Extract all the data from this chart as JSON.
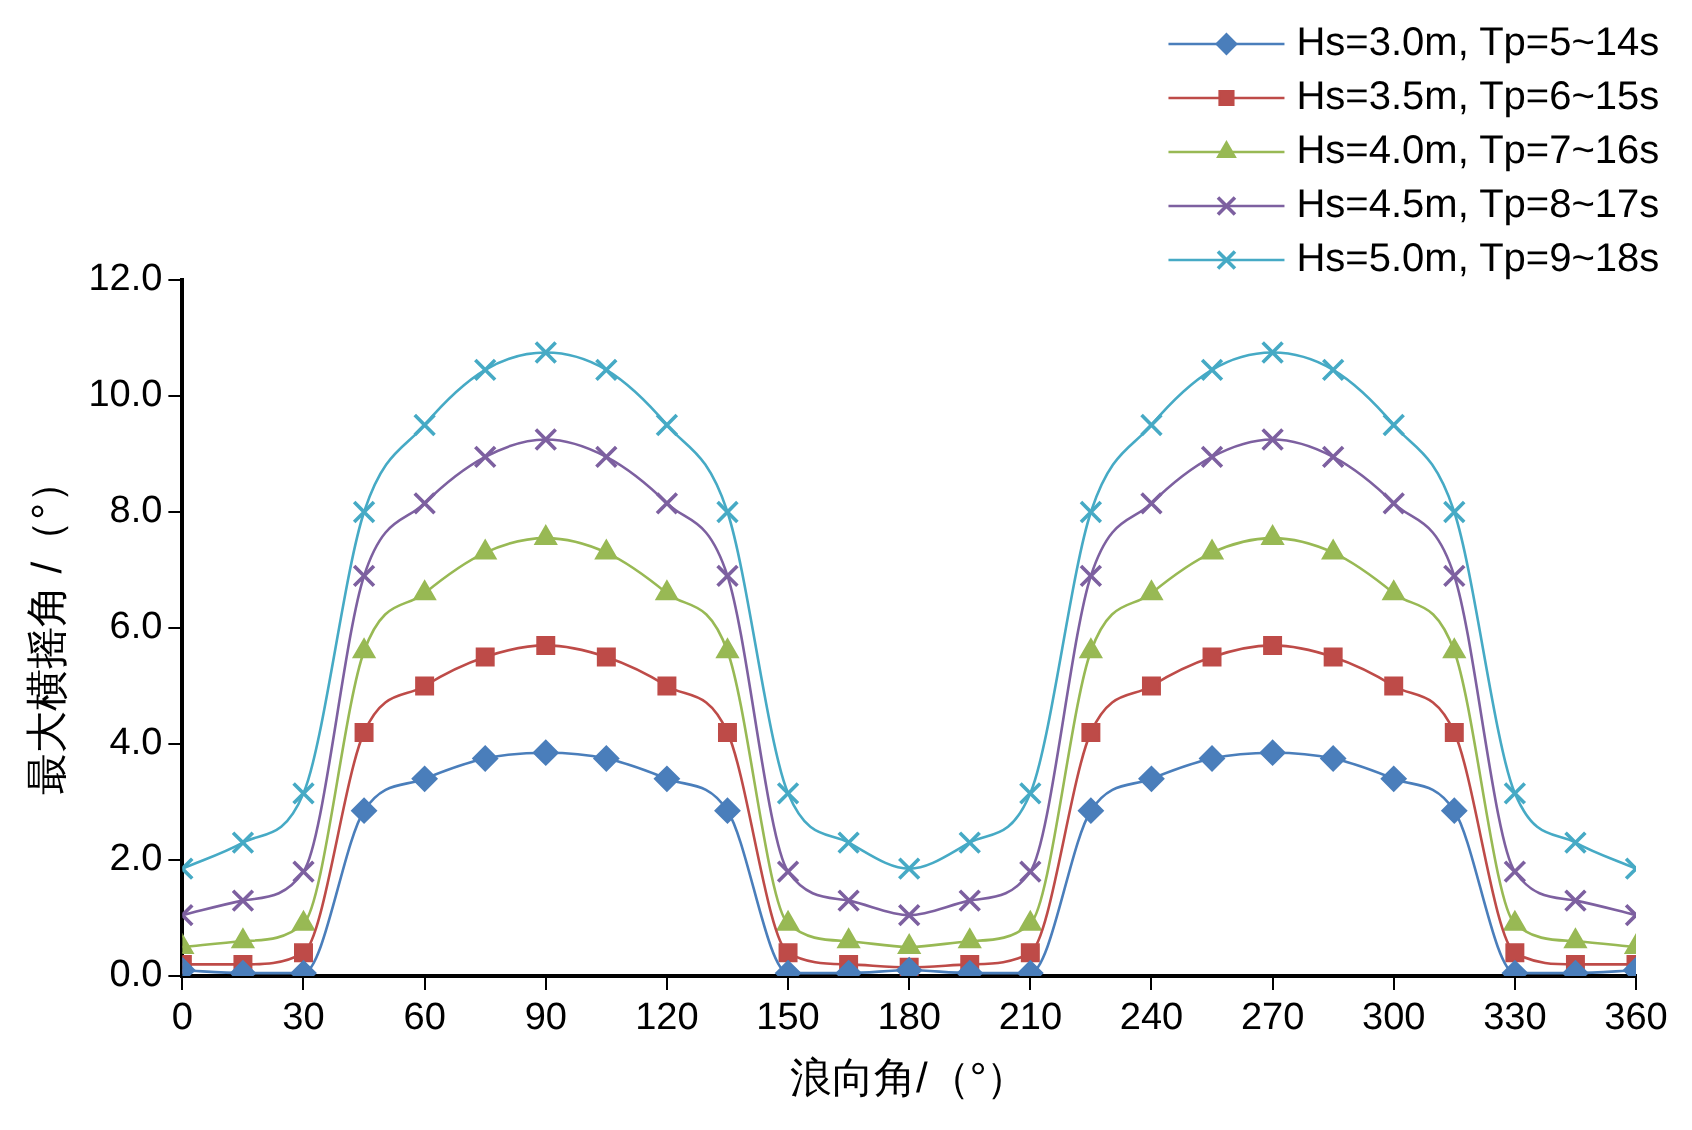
{
  "chart_data": {
    "type": "line",
    "xlabel": "浪向角/（°）",
    "ylabel": "最大横摇角 /（°）",
    "x": [
      0,
      15,
      30,
      45,
      60,
      75,
      90,
      105,
      120,
      135,
      150,
      165,
      180,
      195,
      210,
      225,
      240,
      255,
      270,
      285,
      300,
      315,
      330,
      345,
      360
    ],
    "xlim": [
      0,
      360
    ],
    "xticks": [
      0,
      30,
      60,
      90,
      120,
      150,
      180,
      210,
      240,
      270,
      300,
      330,
      360
    ],
    "ylim": [
      0,
      12
    ],
    "yticks": [
      {
        "value": 0,
        "label": "0.0"
      },
      {
        "value": 2,
        "label": "2.0"
      },
      {
        "value": 4,
        "label": "4.0"
      },
      {
        "value": 6,
        "label": "6.0"
      },
      {
        "value": 8,
        "label": "8.0"
      },
      {
        "value": 10,
        "label": "10.0"
      },
      {
        "value": 12,
        "label": "12.0"
      }
    ],
    "grid": false,
    "legend": "top right",
    "line_style": "solid",
    "series": [
      {
        "name": "Hs=3.0m, Tp=5~14s",
        "color": "#4a7ebb",
        "marker": "diamond",
        "values": [
          0.1,
          0.05,
          0.05,
          2.85,
          3.4,
          3.75,
          3.85,
          3.75,
          3.4,
          2.85,
          0.05,
          0.05,
          0.1,
          0.05,
          0.05,
          2.85,
          3.4,
          3.75,
          3.85,
          3.75,
          3.4,
          2.85,
          0.05,
          0.05,
          0.1
        ]
      },
      {
        "name": "Hs=3.5m, Tp=6~15s",
        "color": "#be4b48",
        "marker": "square",
        "values": [
          0.2,
          0.2,
          0.4,
          4.2,
          5.0,
          5.5,
          5.7,
          5.5,
          5.0,
          4.2,
          0.4,
          0.2,
          0.15,
          0.2,
          0.4,
          4.2,
          5.0,
          5.5,
          5.7,
          5.5,
          5.0,
          4.2,
          0.4,
          0.2,
          0.2
        ]
      },
      {
        "name": "Hs=4.0m, Tp=7~16s",
        "color": "#98b954",
        "marker": "triangle",
        "values": [
          0.5,
          0.6,
          0.9,
          5.6,
          6.6,
          7.3,
          7.55,
          7.3,
          6.6,
          5.6,
          0.9,
          0.6,
          0.5,
          0.6,
          0.9,
          5.6,
          6.6,
          7.3,
          7.55,
          7.3,
          6.6,
          5.6,
          0.9,
          0.6,
          0.5
        ]
      },
      {
        "name": "Hs=4.5m, Tp=8~17s",
        "color": "#7d60a0",
        "marker": "cross",
        "values": [
          1.05,
          1.3,
          1.8,
          6.9,
          8.15,
          8.95,
          9.25,
          8.95,
          8.15,
          6.9,
          1.8,
          1.3,
          1.05,
          1.3,
          1.8,
          6.9,
          8.15,
          8.95,
          9.25,
          8.95,
          8.15,
          6.9,
          1.8,
          1.3,
          1.05
        ]
      },
      {
        "name": "Hs=5.0m, Tp=9~18s",
        "color": "#46aac5",
        "marker": "cross",
        "values": [
          1.85,
          2.3,
          3.15,
          8.0,
          9.5,
          10.45,
          10.75,
          10.45,
          9.5,
          8.0,
          3.15,
          2.3,
          1.85,
          2.3,
          3.15,
          8.0,
          9.5,
          10.45,
          10.75,
          10.45,
          9.5,
          8.0,
          3.15,
          2.3,
          1.85
        ]
      }
    ]
  }
}
